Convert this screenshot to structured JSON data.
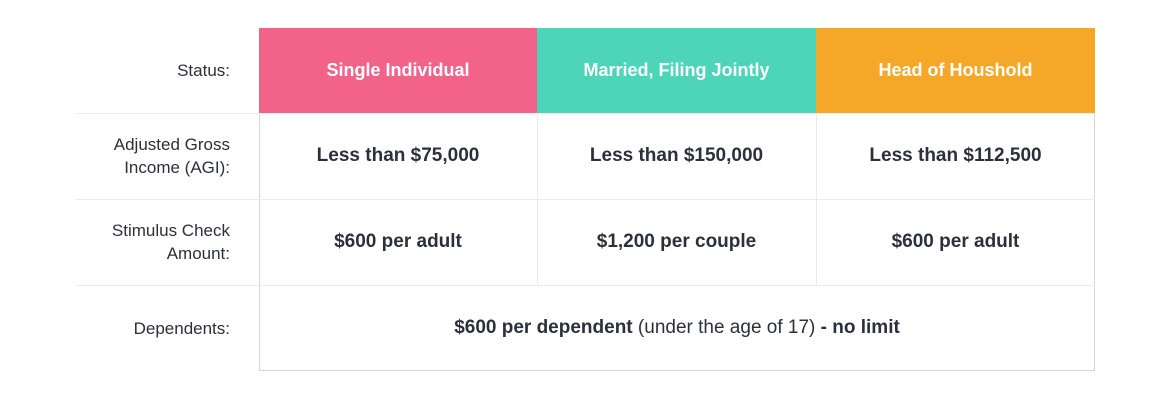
{
  "colors": {
    "single": "#f26289",
    "married": "#4dd5b9",
    "head": "#f5a828"
  },
  "rows": {
    "status": "Status:",
    "agi_line1": "Adjusted Gross",
    "agi_line2": "Income (AGI):",
    "stimulus_line1": "Stimulus Check",
    "stimulus_line2": "Amount:",
    "dependents": "Dependents:"
  },
  "headers": [
    "Single Individual",
    "Married, Filing Jointly",
    "Head of Houshold"
  ],
  "agi": [
    "Less than $75,000",
    "Less than $150,000",
    "Less than $112,500"
  ],
  "stimulus": [
    "$600 per adult",
    "$1,200 per couple",
    "$600 per adult"
  ],
  "dependents": {
    "bold1": "$600 per dependent",
    "normal": " (under the age of 17) ",
    "bold2": "- no limit"
  }
}
